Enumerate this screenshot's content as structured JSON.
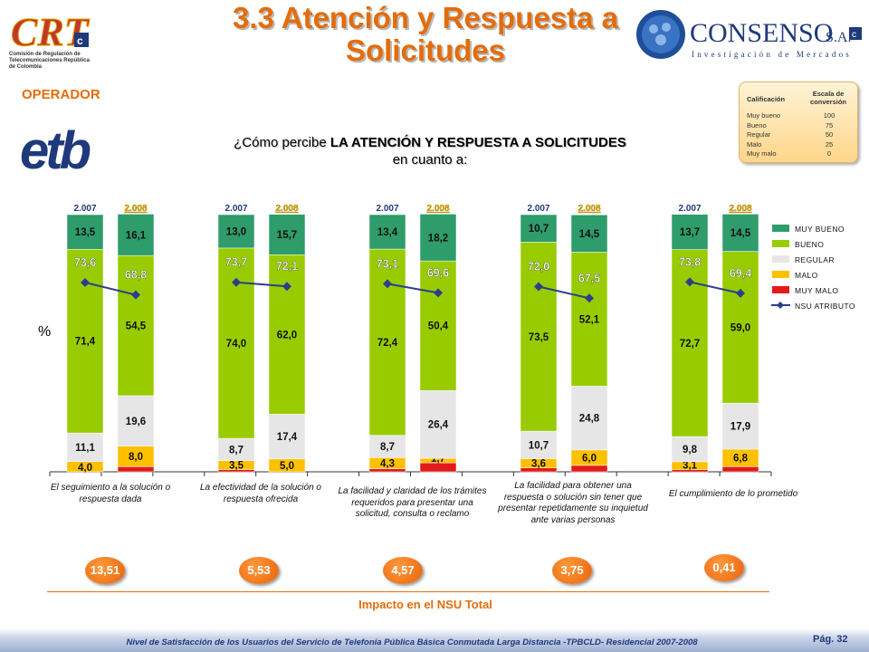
{
  "header": {
    "title": "3.3 Atención y Respuesta a Solicitudes",
    "crt_logo_text": "CRT",
    "crt_logo_sub": "Comisión de Regulación de Telecomunicaciones República de Colombia",
    "consenso_logo_text": "CONSENSO",
    "consenso_logo_suffix": "S.A.",
    "consenso_tagline": "Investigación de Mercados"
  },
  "operator_label": "OPERADOR",
  "operator_logo_text": "etb",
  "question": {
    "prefix": "¿Cómo percibe ",
    "bold": "LA ATENCIÓN Y RESPUESTA A SOLICITUDES",
    "suffix": " en cuanto a:"
  },
  "calificacion": {
    "header_left": "Calificación",
    "header_right": "Escala de conversión",
    "rows": [
      {
        "label": "Muy bueno",
        "value": "100"
      },
      {
        "label": "Bueno",
        "value": "75"
      },
      {
        "label": "Regular",
        "value": "50"
      },
      {
        "label": "Malo",
        "value": "25"
      },
      {
        "label": "Muy malo",
        "value": "0"
      }
    ]
  },
  "percent_label": "%",
  "chart_data": {
    "type": "bar",
    "stacked": true,
    "ylim": [
      0,
      100
    ],
    "year_labels": [
      "2.007",
      "2.008"
    ],
    "colors": {
      "MUY BUENO": "#2e9c6b",
      "BUENO": "#99cc00",
      "REGULAR": "#e6e6e6",
      "MALO": "#ffc000",
      "MUY MALO": "#e31a1c",
      "NSU ATRIBUTO": "#2b3f8c"
    },
    "legend": [
      "MUY BUENO",
      "BUENO",
      "REGULAR",
      "MALO",
      "MUY MALO",
      "NSU ATRIBUTO"
    ],
    "groups": [
      {
        "caption": "El seguimiento a la solución o respuesta dada",
        "impact": "13,51",
        "bars": [
          {
            "year": "2.007",
            "muy_malo": 0,
            "malo": 4.0,
            "regular": 11.1,
            "bueno": 71.4,
            "muy_bueno": 13.5,
            "nsu": 73.6
          },
          {
            "year": "2.008",
            "muy_malo": 2,
            "malo": 8.0,
            "regular": 19.6,
            "bueno": 54.5,
            "muy_bueno": 16.1,
            "nsu": 68.8
          }
        ]
      },
      {
        "caption": "La efectividad de la solución o respuesta ofrecida",
        "impact": "5,53",
        "bars": [
          {
            "year": "2.007",
            "muy_malo": 0.8,
            "malo": 3.5,
            "regular": 8.7,
            "bueno": 74.0,
            "muy_bueno": 13.0,
            "nsu": 73.7
          },
          {
            "year": "2.008",
            "muy_malo": 0,
            "malo": 5.0,
            "regular": 17.4,
            "bueno": 62.0,
            "muy_bueno": 15.7,
            "nsu": 72.1
          }
        ]
      },
      {
        "caption": "La facilidad y claridad de los trámites requeridos para presentar una solicitud, consulta o reclamo",
        "impact": "4,57",
        "bars": [
          {
            "year": "2.007",
            "muy_malo": 1.2,
            "malo": 4.3,
            "regular": 8.7,
            "bueno": 72.4,
            "muy_bueno": 13.4,
            "nsu": 73.1
          },
          {
            "year": "2.008",
            "muy_malo": 3.5,
            "malo": 1.7,
            "regular": 26.4,
            "bueno": 50.4,
            "muy_bueno": 18.2,
            "nsu": 69.6
          }
        ]
      },
      {
        "caption": "La facilidad para obtener una respuesta o solución sin tener que presentar repetidamente su inquietud ante varias personas",
        "impact": "3,75",
        "bars": [
          {
            "year": "2.007",
            "muy_malo": 1.5,
            "malo": 3.6,
            "regular": 10.7,
            "bueno": 73.5,
            "muy_bueno": 10.7,
            "nsu": 72.0
          },
          {
            "year": "2.008",
            "muy_malo": 2.5,
            "malo": 6.0,
            "regular": 24.8,
            "bueno": 52.1,
            "muy_bueno": 14.5,
            "nsu": 67.5
          }
        ]
      },
      {
        "caption": "El cumplimiento de lo prometido",
        "impact": "0,41",
        "bars": [
          {
            "year": "2.007",
            "muy_malo": 0.8,
            "malo": 3.1,
            "regular": 9.8,
            "bueno": 72.7,
            "muy_bueno": 13.7,
            "nsu": 73.8
          },
          {
            "year": "2.008",
            "muy_malo": 2,
            "malo": 6.8,
            "regular": 17.9,
            "bueno": 59.0,
            "muy_bueno": 14.5,
            "nsu": 69.4
          }
        ]
      }
    ]
  },
  "impact_label": "Impacto en el NSU Total",
  "footer": {
    "text": "Nivel de Satisfacción de los Usuarios del Servicio de Telefonía Pública Básica Conmutada Larga Distancia -TPBCLD- Residencial 2007-2008",
    "page": "Pág. 32"
  }
}
